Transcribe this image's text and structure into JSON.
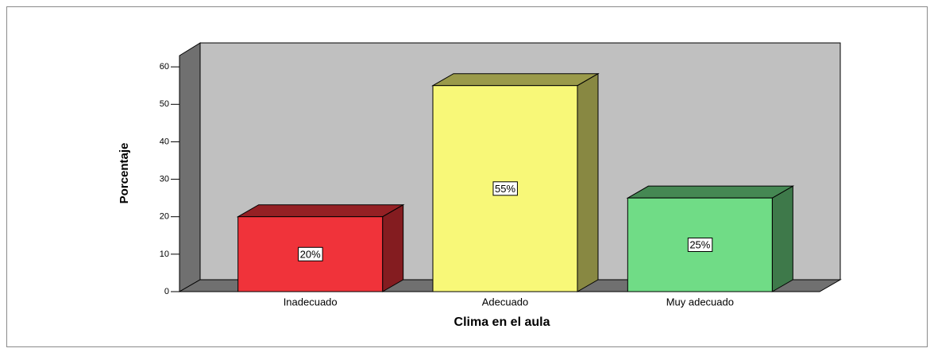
{
  "chart_data": {
    "type": "bar",
    "categories": [
      "Inadecuado",
      "Adecuado",
      "Muy adecuado"
    ],
    "values": [
      20,
      55,
      25
    ],
    "value_labels": [
      "20%",
      "55%",
      "25%"
    ],
    "colors": [
      "#f0333a",
      "#f8f878",
      "#70dc86"
    ],
    "ylim": [
      0,
      63
    ],
    "yticks": [
      0,
      10,
      20,
      30,
      40,
      50,
      60
    ],
    "xlabel": "Clima en el aula",
    "ylabel": "Porcentaje"
  }
}
